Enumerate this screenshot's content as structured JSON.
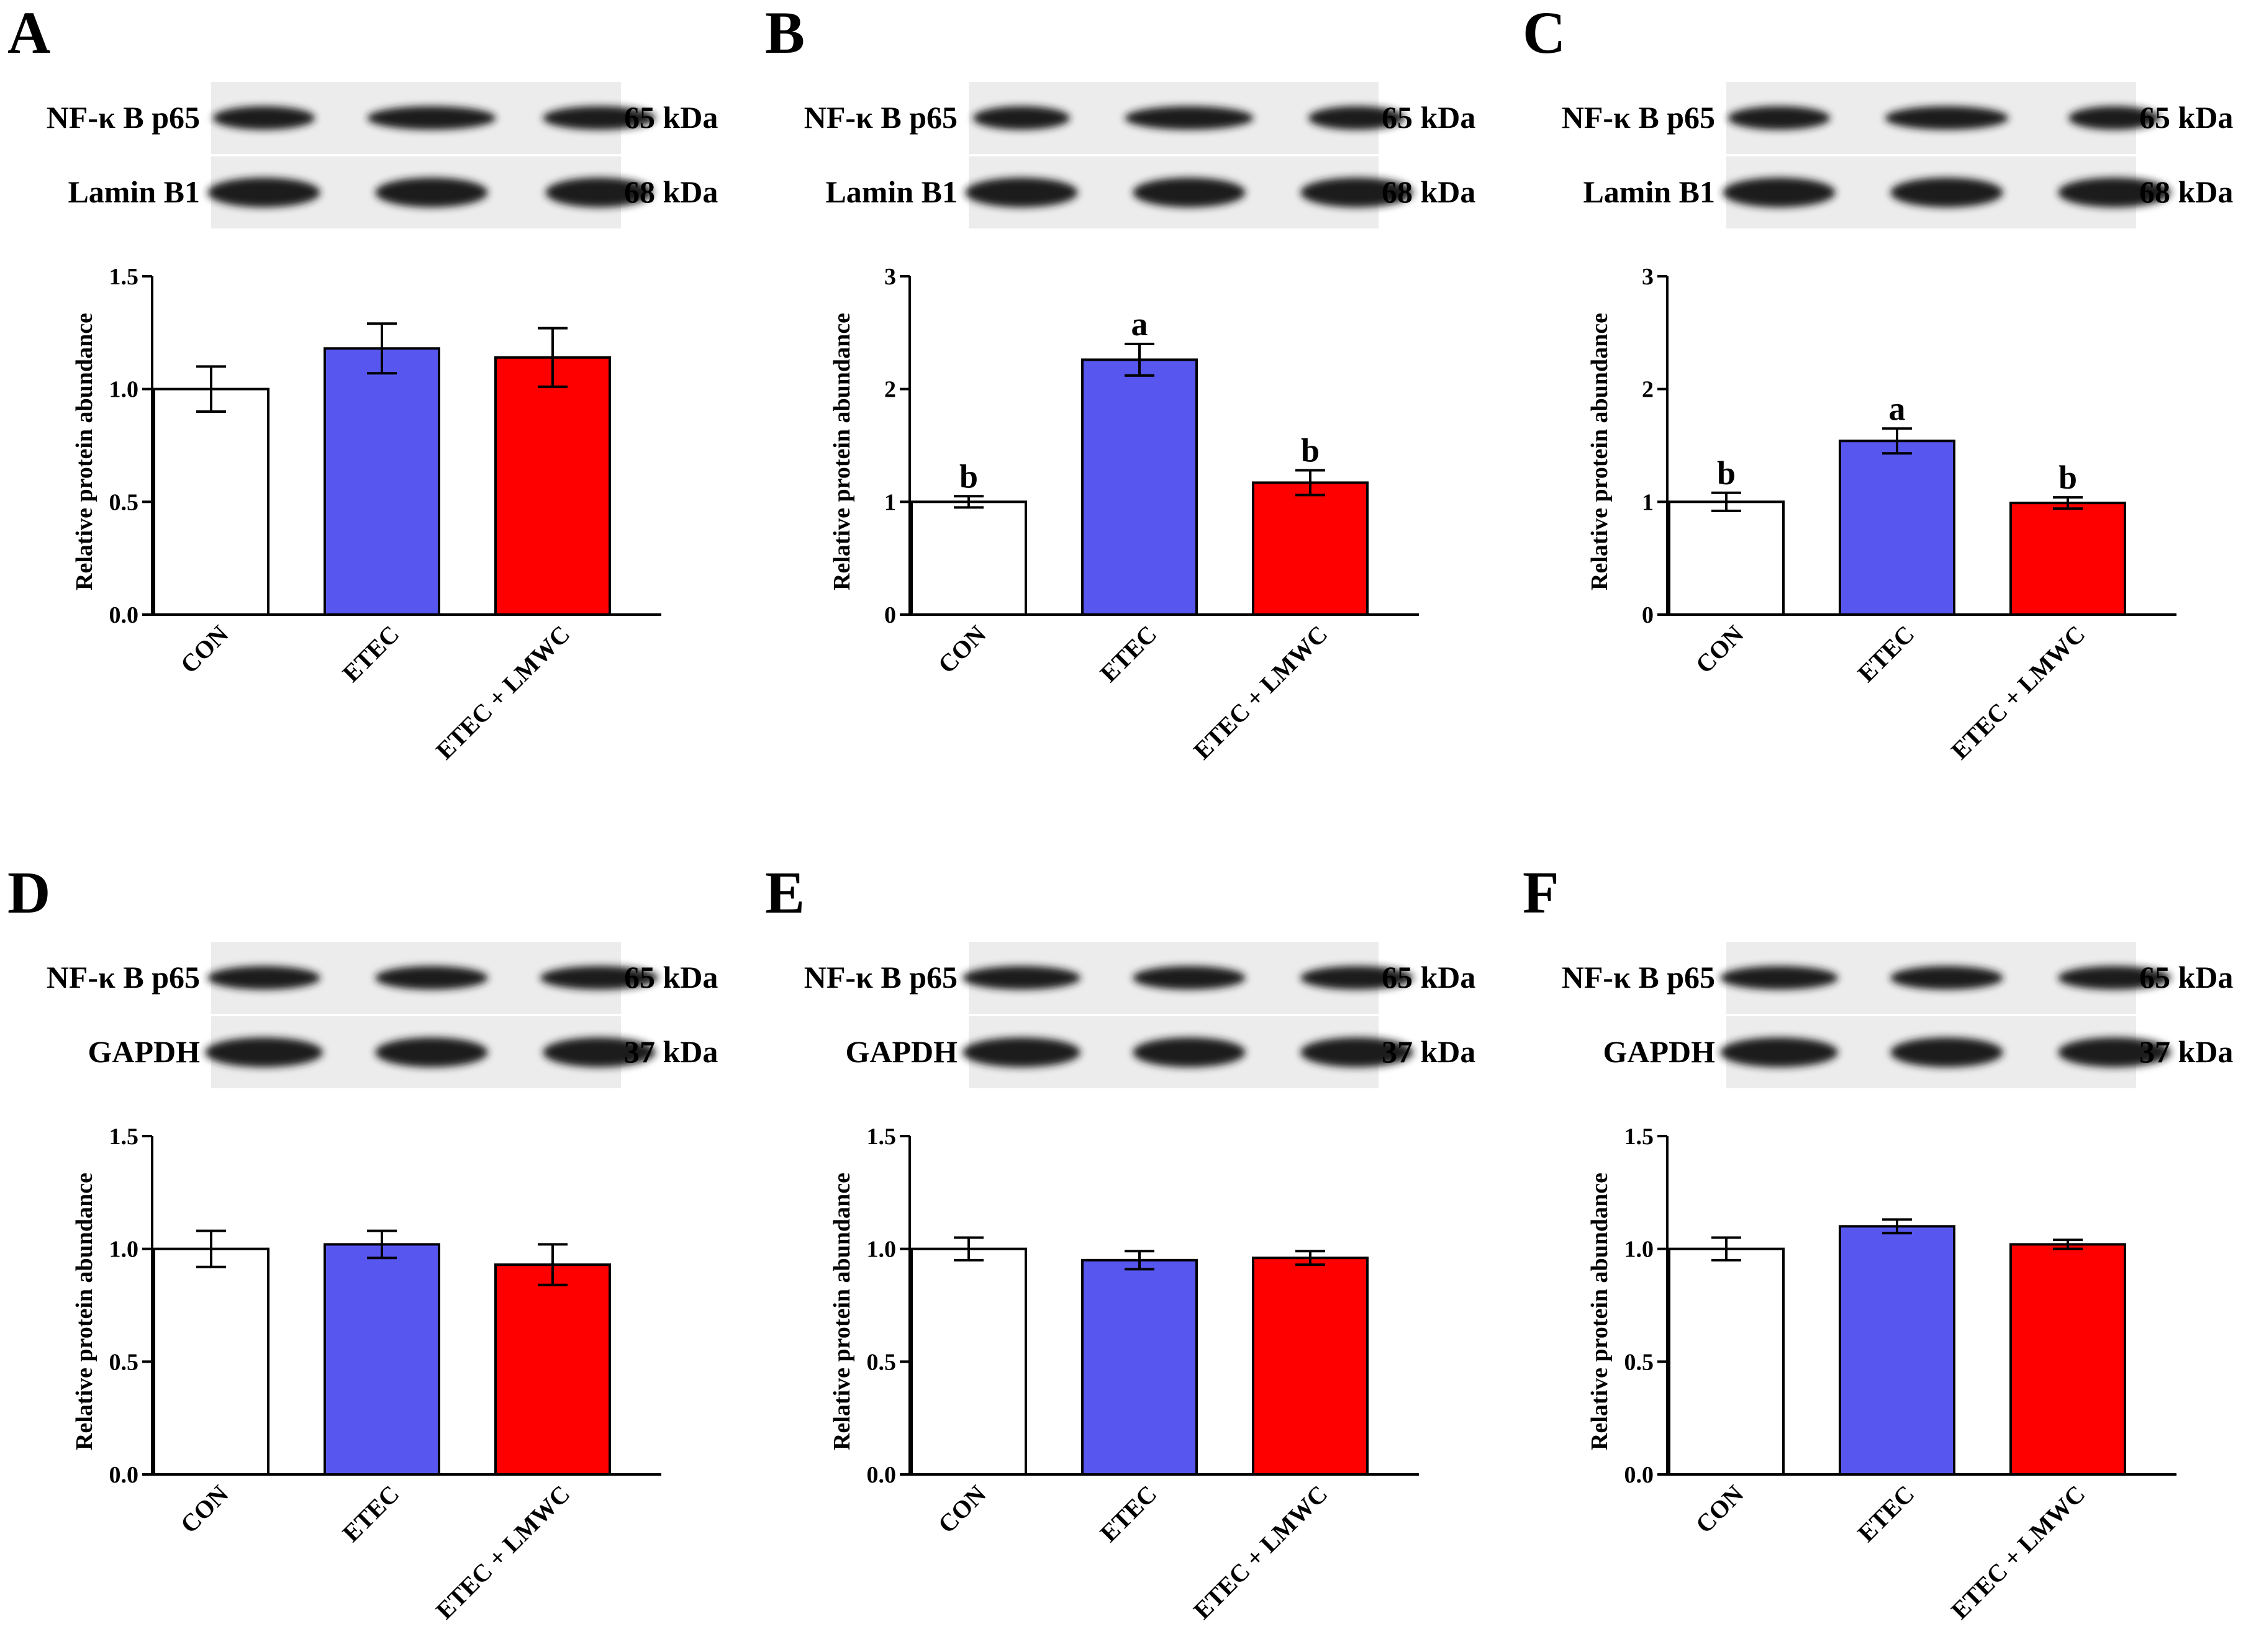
{
  "colors": {
    "CON": "#ffffff",
    "ETEC": "#5757ef",
    "ETEC + LMWC": "#fe0000",
    "axis": "#000000",
    "blot_background": "#ececec",
    "band": "#1a1a1a"
  },
  "panels": [
    {
      "letter": "A",
      "blot": {
        "target_label": "NF-κ B p65",
        "target_kda": "65 kDa",
        "control_label": "Lamin B1",
        "control_kda": "68 kDa"
      }
    },
    {
      "letter": "B",
      "blot": {
        "target_label": "NF-κ B p65",
        "target_kda": "65 kDa",
        "control_label": "Lamin B1",
        "control_kda": "68 kDa"
      }
    },
    {
      "letter": "C",
      "blot": {
        "target_label": "NF-κ B p65",
        "target_kda": "65 kDa",
        "control_label": "Lamin B1",
        "control_kda": "68 kDa"
      }
    },
    {
      "letter": "D",
      "blot": {
        "target_label": "NF-κ B p65",
        "target_kda": "65 kDa",
        "control_label": "GAPDH",
        "control_kda": "37 kDa"
      }
    },
    {
      "letter": "E",
      "blot": {
        "target_label": "NF-κ B p65",
        "target_kda": "65 kDa",
        "control_label": "GAPDH",
        "control_kda": "37 kDa"
      }
    },
    {
      "letter": "F",
      "blot": {
        "target_label": "NF-κ B p65",
        "target_kda": "65 kDa",
        "control_label": "GAPDH",
        "control_kda": "37 kDa"
      }
    }
  ],
  "chart_data": [
    {
      "panel": "A",
      "type": "bar",
      "categories": [
        "CON",
        "ETEC",
        "ETEC + LMWC"
      ],
      "values": [
        1.0,
        1.18,
        1.14
      ],
      "errors": [
        0.1,
        0.11,
        0.13
      ],
      "letters": [
        "",
        "",
        ""
      ],
      "ylabel": "Relative protein abundance",
      "ylim": [
        0,
        1.5
      ],
      "yticks": [
        "0.0",
        "0.5",
        "1.0",
        "1.5"
      ]
    },
    {
      "panel": "B",
      "type": "bar",
      "categories": [
        "CON",
        "ETEC",
        "ETEC + LMWC"
      ],
      "values": [
        1.0,
        2.26,
        1.17
      ],
      "errors": [
        0.05,
        0.14,
        0.11
      ],
      "letters": [
        "b",
        "a",
        "b"
      ],
      "ylabel": "Relative protein abundance",
      "ylim": [
        0,
        3
      ],
      "yticks": [
        "0",
        "1",
        "2",
        "3"
      ]
    },
    {
      "panel": "C",
      "type": "bar",
      "categories": [
        "CON",
        "ETEC",
        "ETEC + LMWC"
      ],
      "values": [
        1.0,
        1.54,
        0.99
      ],
      "errors": [
        0.08,
        0.11,
        0.05
      ],
      "letters": [
        "b",
        "a",
        "b"
      ],
      "ylabel": "Relative protein abundance",
      "ylim": [
        0,
        3
      ],
      "yticks": [
        "0",
        "1",
        "2",
        "3"
      ]
    },
    {
      "panel": "D",
      "type": "bar",
      "categories": [
        "CON",
        "ETEC",
        "ETEC + LMWC"
      ],
      "values": [
        1.0,
        1.02,
        0.93
      ],
      "errors": [
        0.08,
        0.06,
        0.09
      ],
      "letters": [
        "",
        "",
        ""
      ],
      "ylabel": "Relative protein abundance",
      "ylim": [
        0,
        1.5
      ],
      "yticks": [
        "0.0",
        "0.5",
        "1.0",
        "1.5"
      ]
    },
    {
      "panel": "E",
      "type": "bar",
      "categories": [
        "CON",
        "ETEC",
        "ETEC + LMWC"
      ],
      "values": [
        1.0,
        0.95,
        0.96
      ],
      "errors": [
        0.05,
        0.04,
        0.03
      ],
      "letters": [
        "",
        "",
        ""
      ],
      "ylabel": "Relative protein abundance",
      "ylim": [
        0,
        1.5
      ],
      "yticks": [
        "0.0",
        "0.5",
        "1.0",
        "1.5"
      ]
    },
    {
      "panel": "F",
      "type": "bar",
      "categories": [
        "CON",
        "ETEC",
        "ETEC + LMWC"
      ],
      "values": [
        1.0,
        1.1,
        1.02
      ],
      "errors": [
        0.05,
        0.03,
        0.02
      ],
      "letters": [
        "",
        "",
        ""
      ],
      "ylabel": "Relative protein abundance",
      "ylim": [
        0,
        1.5
      ],
      "yticks": [
        "0.0",
        "0.5",
        "1.0",
        "1.5"
      ]
    }
  ]
}
